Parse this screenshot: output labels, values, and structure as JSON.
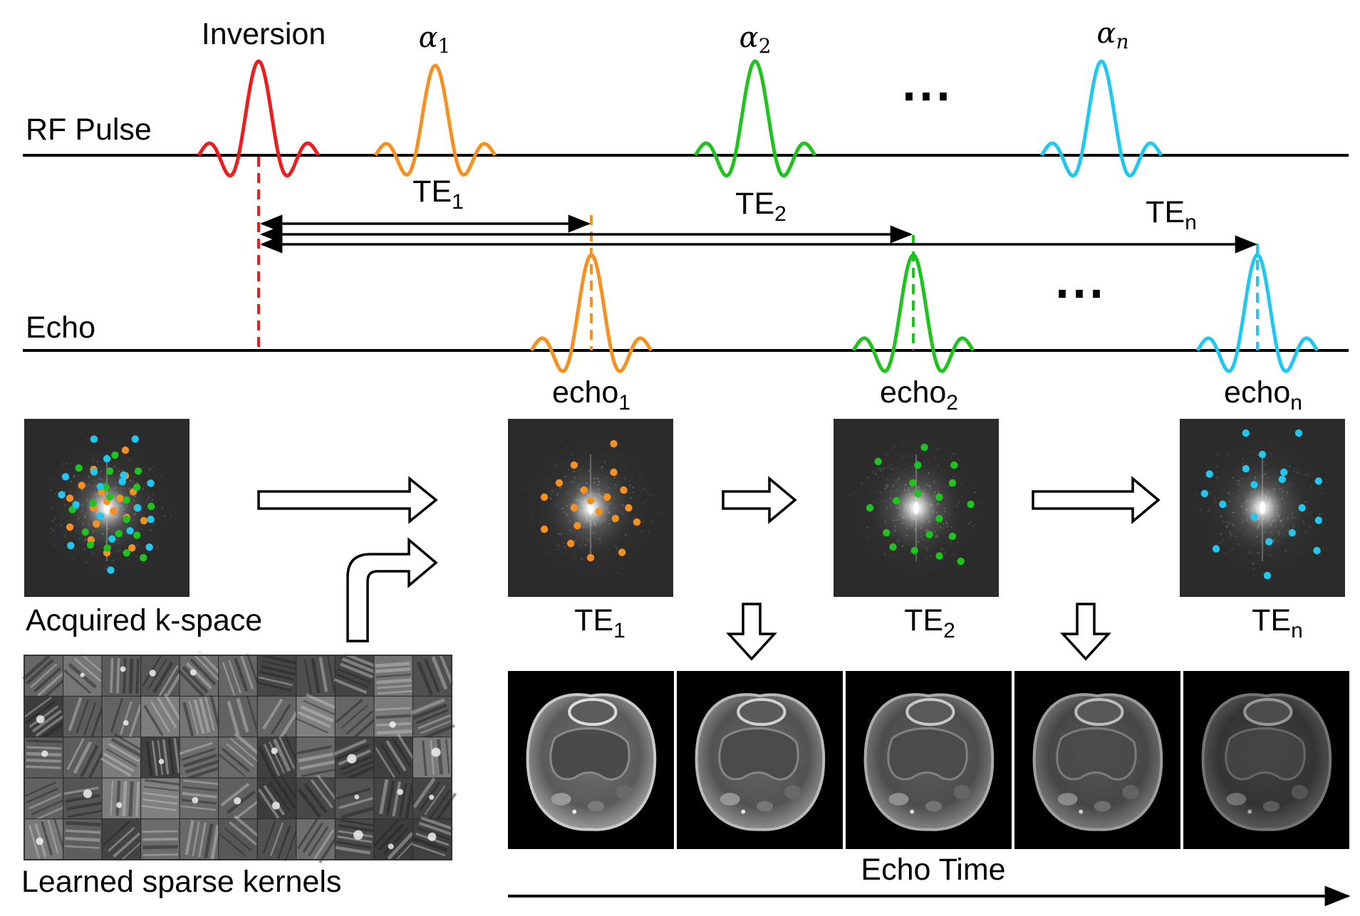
{
  "rows": {
    "rf_label": "RF Pulse",
    "echo_label": "Echo"
  },
  "pulses": {
    "inversion": "Inversion",
    "alpha": [
      {
        "base": "α",
        "sub": "1"
      },
      {
        "base": "α",
        "sub": "2"
      },
      {
        "base": "α",
        "sub": "n"
      }
    ],
    "ellipsis": "⋯"
  },
  "te_labels": [
    {
      "base": "TE",
      "sub": "1"
    },
    {
      "base": "TE",
      "sub": "2"
    },
    {
      "base": "TE",
      "sub": "n"
    }
  ],
  "echo_labels": [
    {
      "base": "echo",
      "sub": "1"
    },
    {
      "base": "echo",
      "sub": "2"
    },
    {
      "base": "echo",
      "sub": "n"
    }
  ],
  "kspace_te_labels": [
    {
      "base": "TE",
      "sub": "1"
    },
    {
      "base": "TE",
      "sub": "2"
    },
    {
      "base": "TE",
      "sub": "n"
    }
  ],
  "captions": {
    "acquired": "Acquired k-space",
    "kernels": "Learned sparse kernels",
    "echo_time": "Echo Time"
  },
  "colors": {
    "inversion": "#ee1c1c",
    "echo1": "#f7901e",
    "echo2": "#1ec31e",
    "echon": "#1ec8f0",
    "axis": "#000000"
  }
}
